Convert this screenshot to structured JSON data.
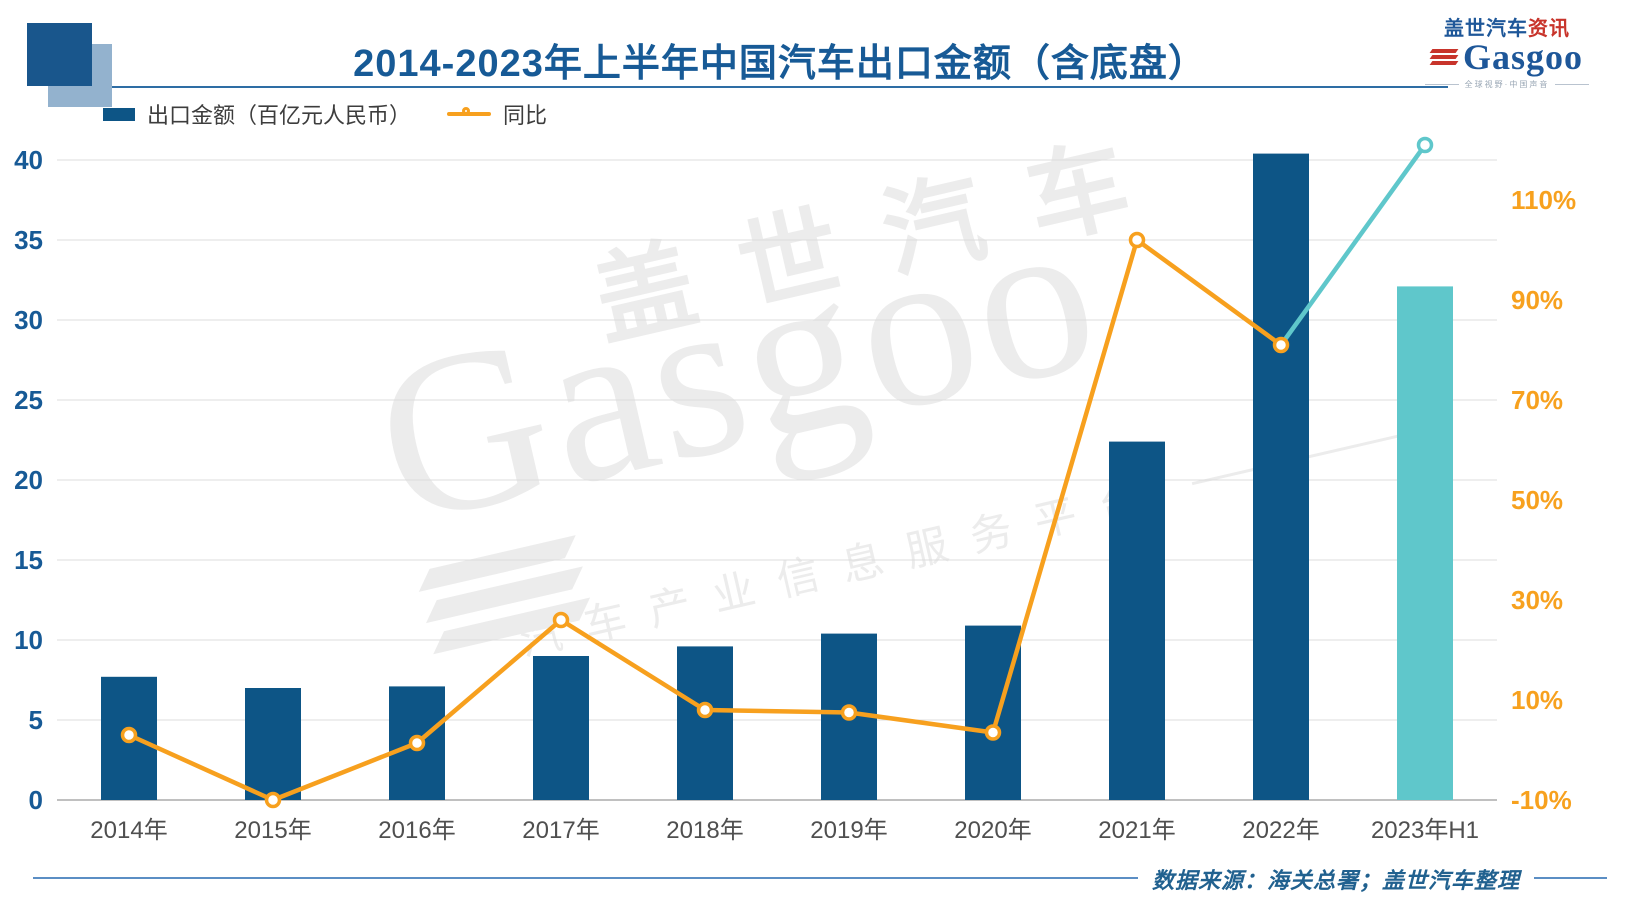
{
  "header": {
    "title": "2014-2023年上半年中国汽车出口金额（含底盘）",
    "logo": {
      "brand_cn": "盖世汽车",
      "brand_cn_accent": "资讯",
      "brand_en": "Gasgoo",
      "tagline": "全球视野·中国声音"
    }
  },
  "legend": {
    "bar_label": "出口金额（百亿元人民币）",
    "line_label": "同比"
  },
  "watermark": {
    "cn": "盖世汽车",
    "en": "Gasgoo",
    "sub": "汽车产业信息服务平台"
  },
  "footer": {
    "source": "数据来源：海关总署；盖世汽车整理"
  },
  "colors": {
    "bar": "#0d5586",
    "bar_last": "#5fc7cb",
    "line": "#f7a01e",
    "line_last": "#5fc7cb",
    "left_tick": "#175a96",
    "right_tick": "#f7a11e",
    "x_tick": "#4f4f4f",
    "grid": "#dcdcdc",
    "axis": "#c0c0c0",
    "title": "#175a96",
    "accent_line": "#2e6da4",
    "source_text": "#21618f",
    "square_dark": "#19568c",
    "square_light": "#93b2ce",
    "watermark": "#ececec",
    "logo_blue": "#1e5799",
    "logo_red": "#c8342b"
  },
  "chart_data": {
    "type": "bar+line",
    "title": "2014-2023年上半年中国汽车出口金额（含底盘）",
    "categories": [
      "2014年",
      "2015年",
      "2016年",
      "2017年",
      "2018年",
      "2019年",
      "2020年",
      "2021年",
      "2022年",
      "2023年H1"
    ],
    "series": [
      {
        "name": "出口金额（百亿元人民币）",
        "type": "bar",
        "axis": "left",
        "values": [
          7.7,
          7.0,
          7.1,
          9.0,
          9.6,
          10.4,
          10.9,
          22.4,
          40.4,
          32.1
        ],
        "note_last_bar_highlighted": true
      },
      {
        "name": "同比",
        "type": "line",
        "axis": "right",
        "unit": "%",
        "values": [
          3,
          -10,
          1.4,
          26,
          8,
          7.5,
          3.5,
          102,
          81,
          121
        ],
        "note_last_segment_highlighted": true
      }
    ],
    "left_axis": {
      "ticks": [
        0,
        5,
        10,
        15,
        20,
        25,
        30,
        35,
        40
      ],
      "range": [
        0,
        40
      ]
    },
    "right_axis": {
      "ticks": [
        "-10%",
        "10%",
        "30%",
        "50%",
        "70%",
        "90%",
        "110%"
      ],
      "range_pct": [
        -10,
        118
      ]
    },
    "grid": "horizontal",
    "legend_position": "top-left"
  }
}
